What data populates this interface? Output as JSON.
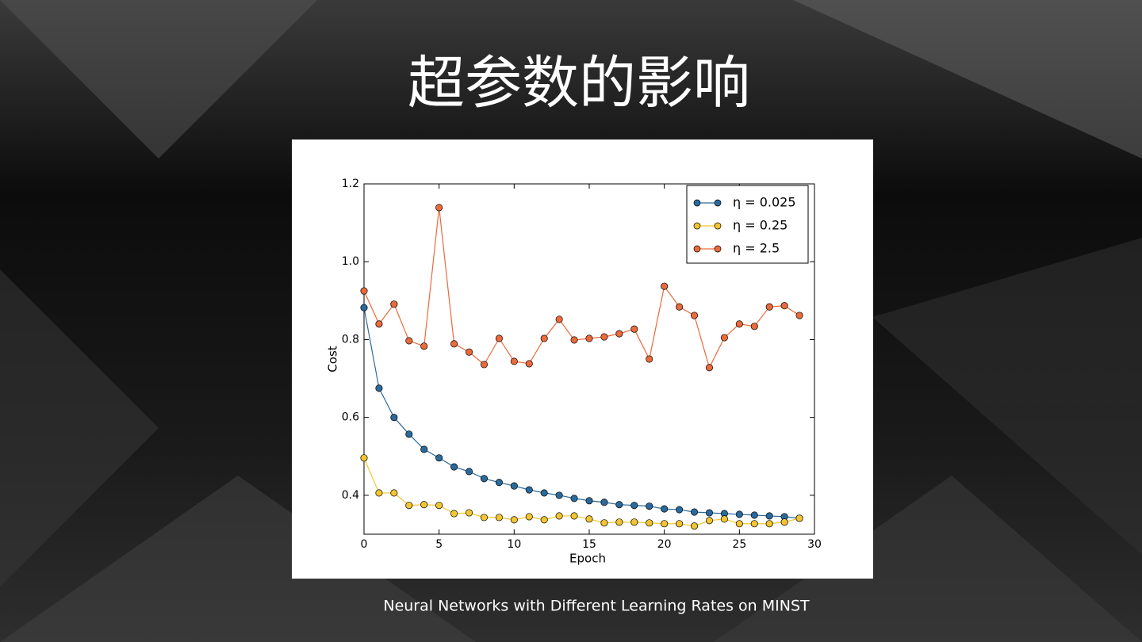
{
  "slide": {
    "title": "超参数的影响",
    "caption": "Neural Networks with Different Learning Rates on MINST"
  },
  "chart_data": {
    "type": "line",
    "x_label": "Epoch",
    "y_label": "Cost",
    "x": [
      0,
      1,
      2,
      3,
      4,
      5,
      6,
      7,
      8,
      9,
      10,
      11,
      12,
      13,
      14,
      15,
      16,
      17,
      18,
      19,
      20,
      21,
      22,
      23,
      24,
      25,
      26,
      27,
      28,
      29
    ],
    "xlim": [
      0,
      30
    ],
    "xticks": [
      0,
      5,
      10,
      15,
      20,
      25,
      30
    ],
    "ylim": [
      0.3,
      1.2
    ],
    "yticks": [
      0.4,
      0.6,
      0.8,
      {
        "value": 1,
        "label": "1.0"
      },
      1.2
    ],
    "grid": false,
    "legend": "upper right",
    "series": [
      {
        "name": "η = 0.025",
        "color": "#2b6a9b",
        "values": [
          0.882,
          0.675,
          0.6,
          0.557,
          0.518,
          0.496,
          0.473,
          0.461,
          0.443,
          0.433,
          0.424,
          0.414,
          0.406,
          0.4,
          0.392,
          0.386,
          0.382,
          0.376,
          0.374,
          0.372,
          0.365,
          0.363,
          0.357,
          0.355,
          0.353,
          0.351,
          0.349,
          0.347,
          0.345,
          0.341
        ]
      },
      {
        "name": "η = 0.25",
        "color": "#f2c531",
        "values": [
          0.496,
          0.406,
          0.406,
          0.374,
          0.376,
          0.374,
          0.353,
          0.355,
          0.343,
          0.343,
          0.337,
          0.345,
          0.337,
          0.347,
          0.347,
          0.339,
          0.329,
          0.331,
          0.331,
          0.329,
          0.327,
          0.327,
          0.321,
          0.335,
          0.339,
          0.327,
          0.327,
          0.327,
          0.331,
          0.341
        ]
      },
      {
        "name": "η = 2.5",
        "color": "#ea6a3c",
        "values": [
          0.925,
          0.84,
          0.891,
          0.797,
          0.783,
          1.139,
          0.789,
          0.768,
          0.736,
          0.803,
          0.744,
          0.738,
          0.803,
          0.852,
          0.799,
          0.803,
          0.807,
          0.815,
          0.827,
          0.75,
          0.937,
          0.884,
          0.862,
          0.728,
          0.805,
          0.84,
          0.834,
          0.884,
          0.887,
          0.862
        ]
      }
    ]
  }
}
